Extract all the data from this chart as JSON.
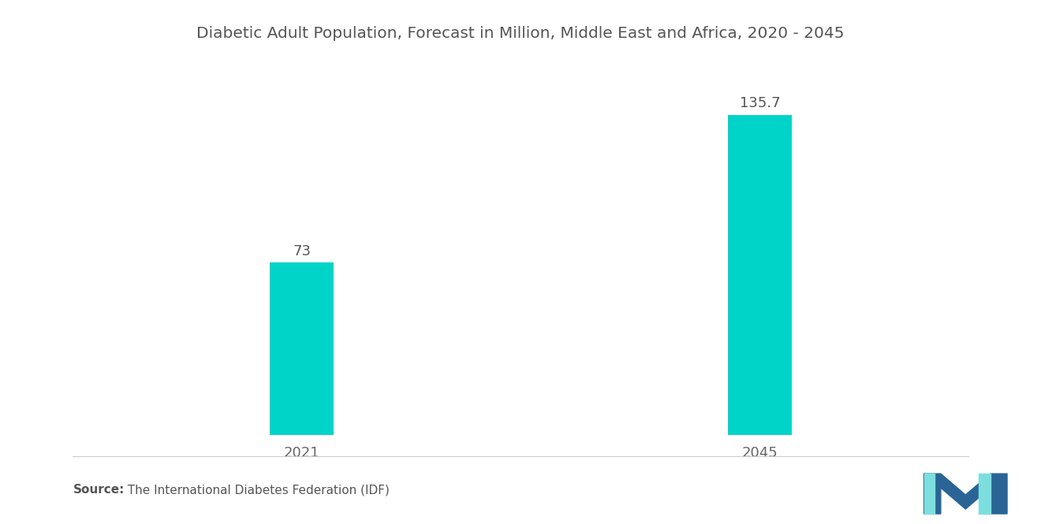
{
  "title": "Diabetic Adult Population, Forecast in Million, Middle East and Africa, 2020 - 2045",
  "categories": [
    "2021",
    "2045"
  ],
  "values": [
    73,
    135.7
  ],
  "bar_labels": [
    "73",
    "135.7"
  ],
  "bar_color": "#00D4C8",
  "background_color": "#ffffff",
  "title_fontsize": 14.5,
  "label_fontsize": 13,
  "tick_fontsize": 13,
  "source_bold": "Source:",
  "source_text": "  The International Diabetes Federation (IDF)",
  "ylim": [
    0,
    160
  ],
  "bar_width": 0.28,
  "x_positions": [
    1,
    3
  ],
  "xlim": [
    0,
    4
  ]
}
